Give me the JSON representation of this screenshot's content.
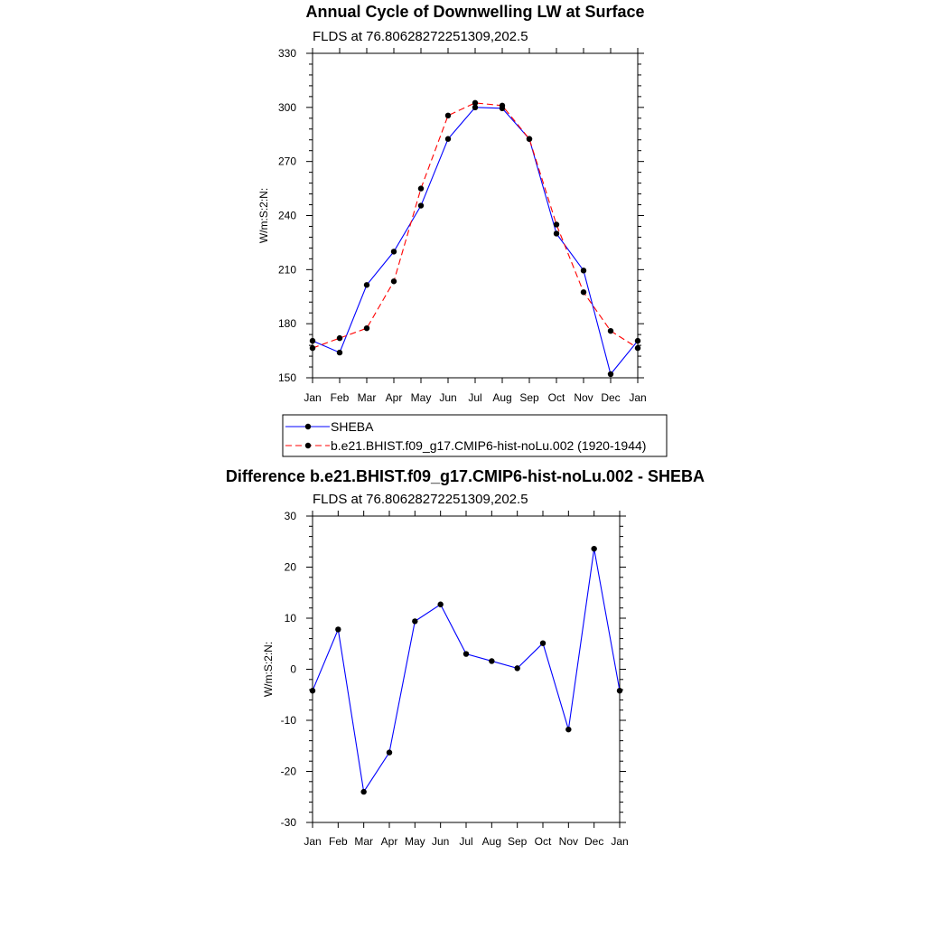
{
  "chart_data": [
    {
      "type": "line",
      "title": "Annual Cycle of Downwelling LW at Surface",
      "subtitle": "FLDS at 76.80628272251309,202.5",
      "ylabel": "W/m:S:2:N:",
      "xlabel": "",
      "categories": [
        "Jan",
        "Feb",
        "Mar",
        "Apr",
        "May",
        "Jun",
        "Jul",
        "Aug",
        "Sep",
        "Oct",
        "Nov",
        "Dec",
        "Jan"
      ],
      "ylim": [
        150,
        330
      ],
      "yticks": [
        150,
        180,
        210,
        240,
        270,
        300,
        330
      ],
      "series": [
        {
          "name": "SHEBA",
          "color": "#0000ff",
          "dash": "solid",
          "values": [
            170.5,
            164,
            201.5,
            220,
            245.5,
            282.5,
            300,
            299.5,
            282.5,
            230,
            209.5,
            152,
            170.5
          ]
        },
        {
          "name": "b.e21.BHIST.f09_g17.CMIP6-hist-noLu.002 (1920-1944)",
          "color": "#ff0000",
          "dash": "dashed",
          "values": [
            166.5,
            172,
            177.5,
            203.5,
            255,
            295.5,
            302.5,
            301,
            282.5,
            235,
            197.5,
            176,
            166.5
          ]
        }
      ],
      "legend": "below"
    },
    {
      "type": "line",
      "title": "Difference b.e21.BHIST.f09_g17.CMIP6-hist-noLu.002 - SHEBA",
      "subtitle": "FLDS at 76.80628272251309,202.5",
      "ylabel": "W/m:S:2:N:",
      "xlabel": "",
      "categories": [
        "Jan",
        "Feb",
        "Mar",
        "Apr",
        "May",
        "Jun",
        "Jul",
        "Aug",
        "Sep",
        "Oct",
        "Nov",
        "Dec",
        "Jan"
      ],
      "ylim": [
        -30,
        30
      ],
      "yticks": [
        -30,
        -20,
        -10,
        0,
        10,
        20,
        30
      ],
      "series": [
        {
          "color": "#0000ff",
          "dash": "solid",
          "values": [
            -4.2,
            7.8,
            -24,
            -16.3,
            9.4,
            12.7,
            3.0,
            1.6,
            0.2,
            5.1,
            -11.8,
            23.6,
            -4.2
          ]
        }
      ]
    }
  ]
}
